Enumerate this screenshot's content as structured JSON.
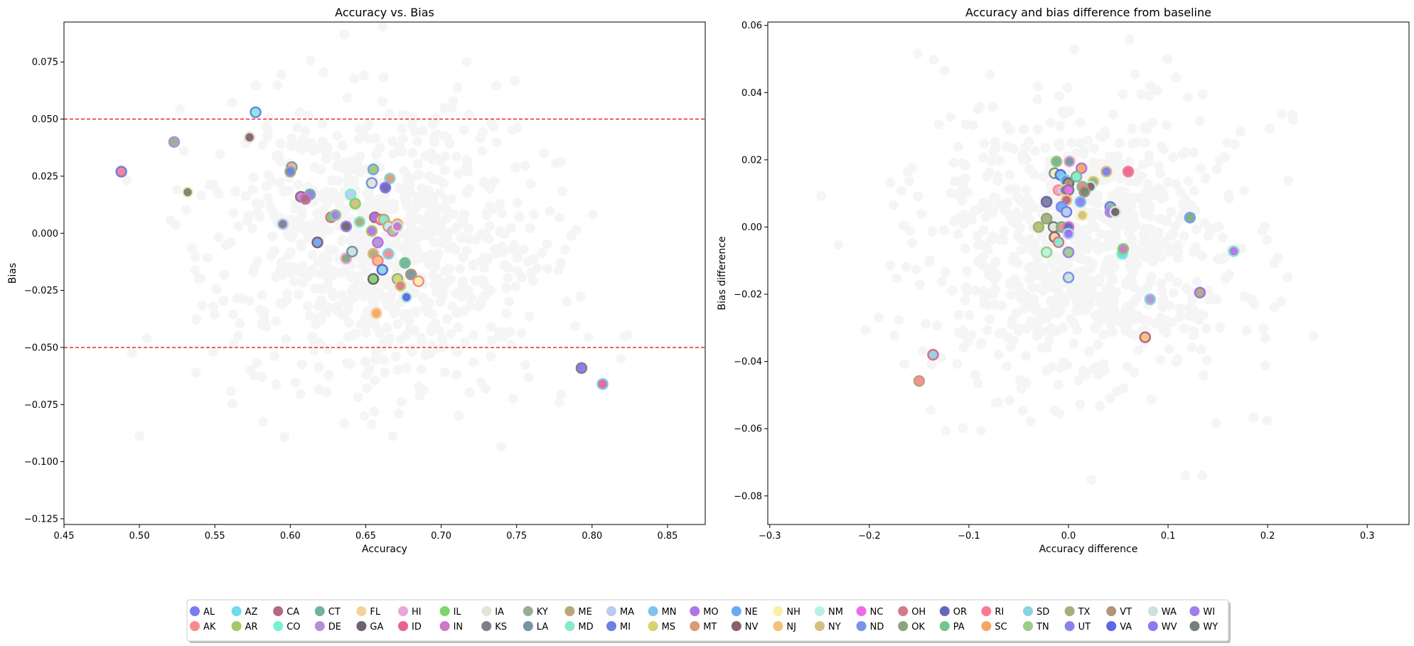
{
  "figure": {
    "legend_location": "bottom-center",
    "background_point_color": "#f5f5f5",
    "threshold_color": "#e41a1c"
  },
  "chart_data": [
    {
      "type": "scatter",
      "title": "Accuracy vs. Bias",
      "xlabel": "Accuracy",
      "ylabel": "Bias",
      "xlim": [
        0.45,
        0.875
      ],
      "ylim": [
        -0.1275,
        0.0925
      ],
      "xticks": [
        "0.45",
        "0.50",
        "0.55",
        "0.60",
        "0.65",
        "0.70",
        "0.75",
        "0.80",
        "0.85"
      ],
      "yticks": [
        "−0.125",
        "−0.100",
        "−0.075",
        "−0.050",
        "−0.025",
        "0.000",
        "0.025",
        "0.050",
        "0.075"
      ],
      "hlines": [
        0.05,
        -0.05
      ],
      "grid": false,
      "highlighted_points": [
        {
          "x": 0.577,
          "y": 0.053
        },
        {
          "x": 0.523,
          "y": 0.04
        },
        {
          "x": 0.573,
          "y": 0.042
        },
        {
          "x": 0.488,
          "y": 0.027
        },
        {
          "x": 0.532,
          "y": 0.018
        },
        {
          "x": 0.601,
          "y": 0.029
        },
        {
          "x": 0.6,
          "y": 0.027
        },
        {
          "x": 0.607,
          "y": 0.016
        },
        {
          "x": 0.613,
          "y": 0.017
        },
        {
          "x": 0.61,
          "y": 0.015
        },
        {
          "x": 0.595,
          "y": 0.004
        },
        {
          "x": 0.618,
          "y": -0.004
        },
        {
          "x": 0.627,
          "y": 0.007
        },
        {
          "x": 0.63,
          "y": 0.008
        },
        {
          "x": 0.637,
          "y": 0.003
        },
        {
          "x": 0.64,
          "y": 0.017
        },
        {
          "x": 0.643,
          "y": 0.013
        },
        {
          "x": 0.646,
          "y": 0.005
        },
        {
          "x": 0.655,
          "y": 0.028
        },
        {
          "x": 0.654,
          "y": 0.022
        },
        {
          "x": 0.666,
          "y": 0.024
        },
        {
          "x": 0.663,
          "y": 0.02
        },
        {
          "x": 0.656,
          "y": 0.007
        },
        {
          "x": 0.66,
          "y": 0.006
        },
        {
          "x": 0.662,
          "y": 0.006
        },
        {
          "x": 0.665,
          "y": 0.003
        },
        {
          "x": 0.668,
          "y": 0.001
        },
        {
          "x": 0.671,
          "y": 0.004
        },
        {
          "x": 0.671,
          "y": 0.003
        },
        {
          "x": 0.654,
          "y": 0.001
        },
        {
          "x": 0.637,
          "y": -0.011
        },
        {
          "x": 0.641,
          "y": -0.008
        },
        {
          "x": 0.658,
          "y": -0.004
        },
        {
          "x": 0.655,
          "y": -0.009
        },
        {
          "x": 0.658,
          "y": -0.012
        },
        {
          "x": 0.661,
          "y": -0.016
        },
        {
          "x": 0.665,
          "y": -0.009
        },
        {
          "x": 0.655,
          "y": -0.02
        },
        {
          "x": 0.671,
          "y": -0.02
        },
        {
          "x": 0.673,
          "y": -0.023
        },
        {
          "x": 0.677,
          "y": -0.028
        },
        {
          "x": 0.676,
          "y": -0.013
        },
        {
          "x": 0.68,
          "y": -0.018
        },
        {
          "x": 0.685,
          "y": -0.021
        },
        {
          "x": 0.657,
          "y": -0.035
        },
        {
          "x": 0.793,
          "y": -0.059
        },
        {
          "x": 0.807,
          "y": -0.066
        }
      ]
    },
    {
      "type": "scatter",
      "title": "Accuracy and bias difference from baseline",
      "xlabel": "Accuracy difference",
      "ylabel": "Bias difference",
      "xlim": [
        -0.302,
        0.342
      ],
      "ylim": [
        -0.0885,
        0.061
      ],
      "xticks": [
        "−0.3",
        "−0.2",
        "−0.1",
        "0.0",
        "0.1",
        "0.2",
        "0.3"
      ],
      "yticks": [
        "−0.08",
        "−0.06",
        "−0.04",
        "−0.02",
        "0.00",
        "0.02",
        "0.04",
        "0.06"
      ],
      "grid": false,
      "highlighted_points": [
        {
          "x": -0.012,
          "y": 0.0195
        },
        {
          "x": 0.001,
          "y": 0.0195
        },
        {
          "x": -0.014,
          "y": 0.016
        },
        {
          "x": 0.013,
          "y": 0.0175
        },
        {
          "x": 0.038,
          "y": 0.0165
        },
        {
          "x": 0.06,
          "y": 0.0165
        },
        {
          "x": -0.008,
          "y": 0.0155
        },
        {
          "x": -0.003,
          "y": 0.014
        },
        {
          "x": 0.0,
          "y": 0.013
        },
        {
          "x": 0.008,
          "y": 0.015
        },
        {
          "x": 0.025,
          "y": 0.0135
        },
        {
          "x": 0.022,
          "y": 0.012
        },
        {
          "x": 0.014,
          "y": 0.012
        },
        {
          "x": 0.016,
          "y": 0.0105
        },
        {
          "x": -0.01,
          "y": 0.011
        },
        {
          "x": -0.004,
          "y": 0.011
        },
        {
          "x": 0.0,
          "y": 0.011
        },
        {
          "x": 0.012,
          "y": 0.0075
        },
        {
          "x": -0.002,
          "y": 0.008
        },
        {
          "x": -0.022,
          "y": 0.0075
        },
        {
          "x": -0.007,
          "y": 0.006
        },
        {
          "x": 0.042,
          "y": 0.006
        },
        {
          "x": 0.042,
          "y": 0.0045
        },
        {
          "x": 0.047,
          "y": 0.0045
        },
        {
          "x": -0.002,
          "y": 0.0045
        },
        {
          "x": 0.014,
          "y": 0.0035
        },
        {
          "x": -0.022,
          "y": 0.0025
        },
        {
          "x": -0.03,
          "y": 0.0
        },
        {
          "x": -0.015,
          "y": 0.0
        },
        {
          "x": -0.007,
          "y": 0.0
        },
        {
          "x": 0.0,
          "y": 0.0
        },
        {
          "x": 0.0,
          "y": -0.002
        },
        {
          "x": -0.014,
          "y": -0.003
        },
        {
          "x": -0.01,
          "y": -0.0045
        },
        {
          "x": -0.022,
          "y": -0.0075
        },
        {
          "x": 0.0,
          "y": -0.0075
        },
        {
          "x": 0.054,
          "y": -0.008
        },
        {
          "x": 0.055,
          "y": -0.0065
        },
        {
          "x": 0.166,
          "y": -0.0072
        },
        {
          "x": 0.122,
          "y": 0.0028
        },
        {
          "x": 0.0,
          "y": -0.015
        },
        {
          "x": 0.082,
          "y": -0.0215
        },
        {
          "x": 0.132,
          "y": -0.0195
        },
        {
          "x": 0.077,
          "y": -0.0328
        },
        {
          "x": -0.136,
          "y": -0.038
        },
        {
          "x": -0.15,
          "y": -0.0458
        }
      ]
    }
  ],
  "legend": {
    "entries": [
      {
        "label": "AL",
        "color": "#7b7bf0"
      },
      {
        "label": "AK",
        "color": "#f78b8b"
      },
      {
        "label": "AZ",
        "color": "#6fd9ee"
      },
      {
        "label": "AR",
        "color": "#a9c46b"
      },
      {
        "label": "CA",
        "color": "#b06a82"
      },
      {
        "label": "CO",
        "color": "#79f0d2"
      },
      {
        "label": "CT",
        "color": "#6fb39e"
      },
      {
        "label": "DE",
        "color": "#b292d3"
      },
      {
        "label": "FL",
        "color": "#f4d39a"
      },
      {
        "label": "GA",
        "color": "#6e6470"
      },
      {
        "label": "HI",
        "color": "#eaa6d8"
      },
      {
        "label": "ID",
        "color": "#e7648f"
      },
      {
        "label": "IL",
        "color": "#7fd46b"
      },
      {
        "label": "IN",
        "color": "#cc78c6"
      },
      {
        "label": "IA",
        "color": "#e3e5d5"
      },
      {
        "label": "KS",
        "color": "#837b8c"
      },
      {
        "label": "KY",
        "color": "#97ad94"
      },
      {
        "label": "LA",
        "color": "#7795a2"
      },
      {
        "label": "ME",
        "color": "#b8a77a"
      },
      {
        "label": "MD",
        "color": "#86ebcd"
      },
      {
        "label": "MA",
        "color": "#b9ccf0"
      },
      {
        "label": "MI",
        "color": "#6e80e4"
      },
      {
        "label": "MN",
        "color": "#7fc3ea"
      },
      {
        "label": "MS",
        "color": "#d5d46e"
      },
      {
        "label": "MO",
        "color": "#b472e8"
      },
      {
        "label": "MT",
        "color": "#d99b7a"
      },
      {
        "label": "NE",
        "color": "#6aa8f2"
      },
      {
        "label": "NV",
        "color": "#8a5f6b"
      },
      {
        "label": "NH",
        "color": "#f8f0a8"
      },
      {
        "label": "NJ",
        "color": "#f8c07a"
      },
      {
        "label": "NM",
        "color": "#b6f2e4"
      },
      {
        "label": "NY",
        "color": "#d4bf7e"
      },
      {
        "label": "NC",
        "color": "#ee6be8"
      },
      {
        "label": "ND",
        "color": "#7794e8"
      },
      {
        "label": "OH",
        "color": "#d57b87"
      },
      {
        "label": "OK",
        "color": "#88a57e"
      },
      {
        "label": "OR",
        "color": "#6767b8"
      },
      {
        "label": "PA",
        "color": "#75c48e"
      },
      {
        "label": "RI",
        "color": "#f77c93"
      },
      {
        "label": "SC",
        "color": "#f5a763"
      },
      {
        "label": "SD",
        "color": "#8ad4e2"
      },
      {
        "label": "TN",
        "color": "#9ccd85"
      },
      {
        "label": "TX",
        "color": "#a8ad7d"
      },
      {
        "label": "UT",
        "color": "#8a82ee"
      },
      {
        "label": "VT",
        "color": "#b39478"
      },
      {
        "label": "VA",
        "color": "#5b67e6"
      },
      {
        "label": "WA",
        "color": "#cee0de"
      },
      {
        "label": "WV",
        "color": "#8e77ef"
      },
      {
        "label": "WI",
        "color": "#a27eec"
      },
      {
        "label": "WY",
        "color": "#77807a"
      }
    ]
  }
}
